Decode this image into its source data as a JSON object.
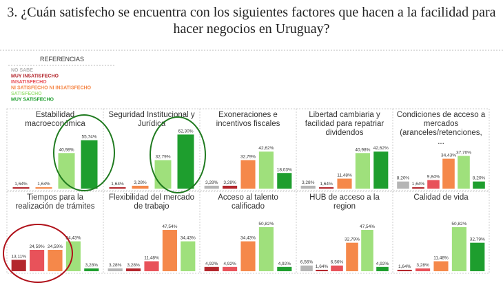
{
  "chart_data": {
    "type": "bar",
    "title": "3. ¿Cuán satisfecho se encuentra con los siguientes factores que hacen a la facilidad para hacer negocios en Uruguay?",
    "legend_title": "REFERENCIAS",
    "categories": [
      "NO SABE",
      "MUY INSATISFECHO",
      "INSATISFECHO",
      "NI SATISFECHO NI INSATISFECHO",
      "SATISFECHO",
      "MUY SATISFECHO"
    ],
    "colors": [
      "#b5b5b5",
      "#b3272d",
      "#e8525a",
      "#f5884a",
      "#9fe07c",
      "#1e9e2e"
    ],
    "ylim": [
      0,
      65
    ],
    "panels": [
      {
        "title": "Estabilidad macroeconómica",
        "values": [
          null,
          1.64,
          null,
          1.64,
          40.98,
          55.74
        ],
        "value_labels": [
          null,
          "1,64%",
          null,
          "1,64%",
          "40,98%",
          "55,74%"
        ]
      },
      {
        "title": "Seguridad Institucional y Jurídica",
        "values": [
          null,
          1.64,
          null,
          3.28,
          32.79,
          62.3
        ],
        "value_labels": [
          null,
          "1,64%",
          null,
          "3,28%",
          "32,79%",
          "62,30%"
        ]
      },
      {
        "title": "Exoneraciones e incentivos fiscales",
        "values": [
          3.28,
          3.28,
          null,
          32.79,
          42.62,
          18.03
        ],
        "value_labels": [
          "3,28%",
          "3,28%",
          null,
          "32,79%",
          "42,62%",
          "18,03%"
        ]
      },
      {
        "title": "Libertad cambiaria y facilidad para repatriar dividendos",
        "values": [
          3.28,
          1.64,
          null,
          11.48,
          40.98,
          42.62
        ],
        "value_labels": [
          "3,28%",
          "1,64%",
          null,
          "11,48%",
          "40,98%",
          "42,62%"
        ]
      },
      {
        "title": "Condiciones de acceso a mercados (aranceles/retenciones, ...",
        "values": [
          8.2,
          1.64,
          9.84,
          34.43,
          37.7,
          8.2
        ],
        "value_labels": [
          "8,20%",
          "1,64%",
          "9,84%",
          "34,43%",
          "37,70%",
          "8,20%"
        ]
      },
      {
        "title": "Tiempos para la realización de trámites",
        "values": [
          null,
          13.11,
          24.59,
          24.59,
          34.43,
          3.28
        ],
        "value_labels": [
          null,
          "13,11%",
          "24,59%",
          "24,59%",
          "34,43%",
          "3,28%"
        ]
      },
      {
        "title": "Flexibilidad del mercado de trabajo",
        "values": [
          3.28,
          3.28,
          11.48,
          47.54,
          34.43,
          null
        ],
        "value_labels": [
          "3,28%",
          "3,28%",
          "11,48%",
          "47,54%",
          "34,43%",
          null
        ]
      },
      {
        "title": "Acceso al talento calificado",
        "values": [
          null,
          4.92,
          4.92,
          34.43,
          50.82,
          4.92
        ],
        "value_labels": [
          null,
          "4,92%",
          "4,92%",
          "34,43%",
          "50,82%",
          "4,92%"
        ]
      },
      {
        "title": "HUB de acceso a la region",
        "values": [
          6.56,
          1.64,
          6.56,
          32.79,
          47.54,
          4.92
        ],
        "value_labels": [
          "6,56%",
          "1,64%",
          "6,56%",
          "32,79%",
          "47,54%",
          "4,92%"
        ]
      },
      {
        "title": "Calidad de vida",
        "values": [
          null,
          1.64,
          3.28,
          11.48,
          50.82,
          32.79
        ],
        "value_labels": [
          null,
          "1,64%",
          "3,28%",
          "11,48%",
          "50,82%",
          "32,79%"
        ]
      }
    ]
  }
}
